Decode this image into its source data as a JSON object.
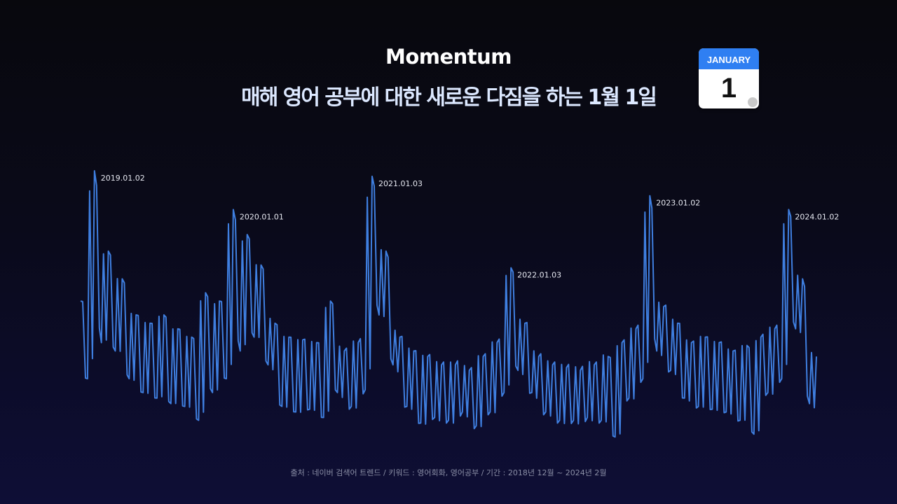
{
  "header": {
    "title": "Momentum",
    "subtitle": "매해 영어 공부에 대한 새로운 다짐을 하는 1월 1일",
    "calendar_icon": {
      "month": "JANUARY",
      "day": "1",
      "accent": "#2f7ff2"
    }
  },
  "chart_data": {
    "type": "line",
    "title": "",
    "xlabel": "",
    "ylabel": "",
    "period": "2018년 12월 ~ 2024년 2월",
    "axes_visible": false,
    "grid": false,
    "line_color": "#3f7fe0",
    "values": [
      53,
      25,
      100,
      38,
      71,
      35,
      61,
      25,
      48,
      20,
      45,
      18,
      48,
      16,
      43,
      15,
      40,
      10,
      56,
      20,
      53,
      25,
      86,
      35,
      77,
      40,
      66,
      30,
      45,
      15,
      40,
      13,
      39,
      14,
      38,
      11,
      53,
      20,
      35,
      15,
      38,
      21,
      98,
      48,
      71,
      30,
      40,
      15,
      35,
      9,
      33,
      11,
      30,
      10,
      30,
      13,
      28,
      8,
      33,
      13,
      38,
      20,
      65,
      28,
      45,
      20,
      33,
      13,
      30,
      10,
      29,
      10,
      28,
      11,
      30,
      10,
      33,
      4,
      38,
      18,
      43,
      25,
      91,
      35,
      51,
      28,
      45,
      18,
      38,
      15,
      40,
      14,
      38,
      13,
      35,
      10,
      37,
      5,
      40,
      20,
      43,
      25,
      86,
      43,
      61,
      16,
      33
    ],
    "annotations": [
      {
        "label": "2019.01.02",
        "index": 2
      },
      {
        "label": "2020.01.01",
        "index": 22
      },
      {
        "label": "2021.01.03",
        "index": 42
      },
      {
        "label": "2022.01.03",
        "index": 62
      },
      {
        "label": "2023.01.02",
        "index": 82
      },
      {
        "label": "2024.01.02",
        "index": 102
      }
    ]
  },
  "footer": {
    "source": "출처 : 네이버 검색어 트렌드 / 키워드 : 영어회화, 영어공부 / 기간 : 2018년 12월 ~ 2024년 2월"
  }
}
